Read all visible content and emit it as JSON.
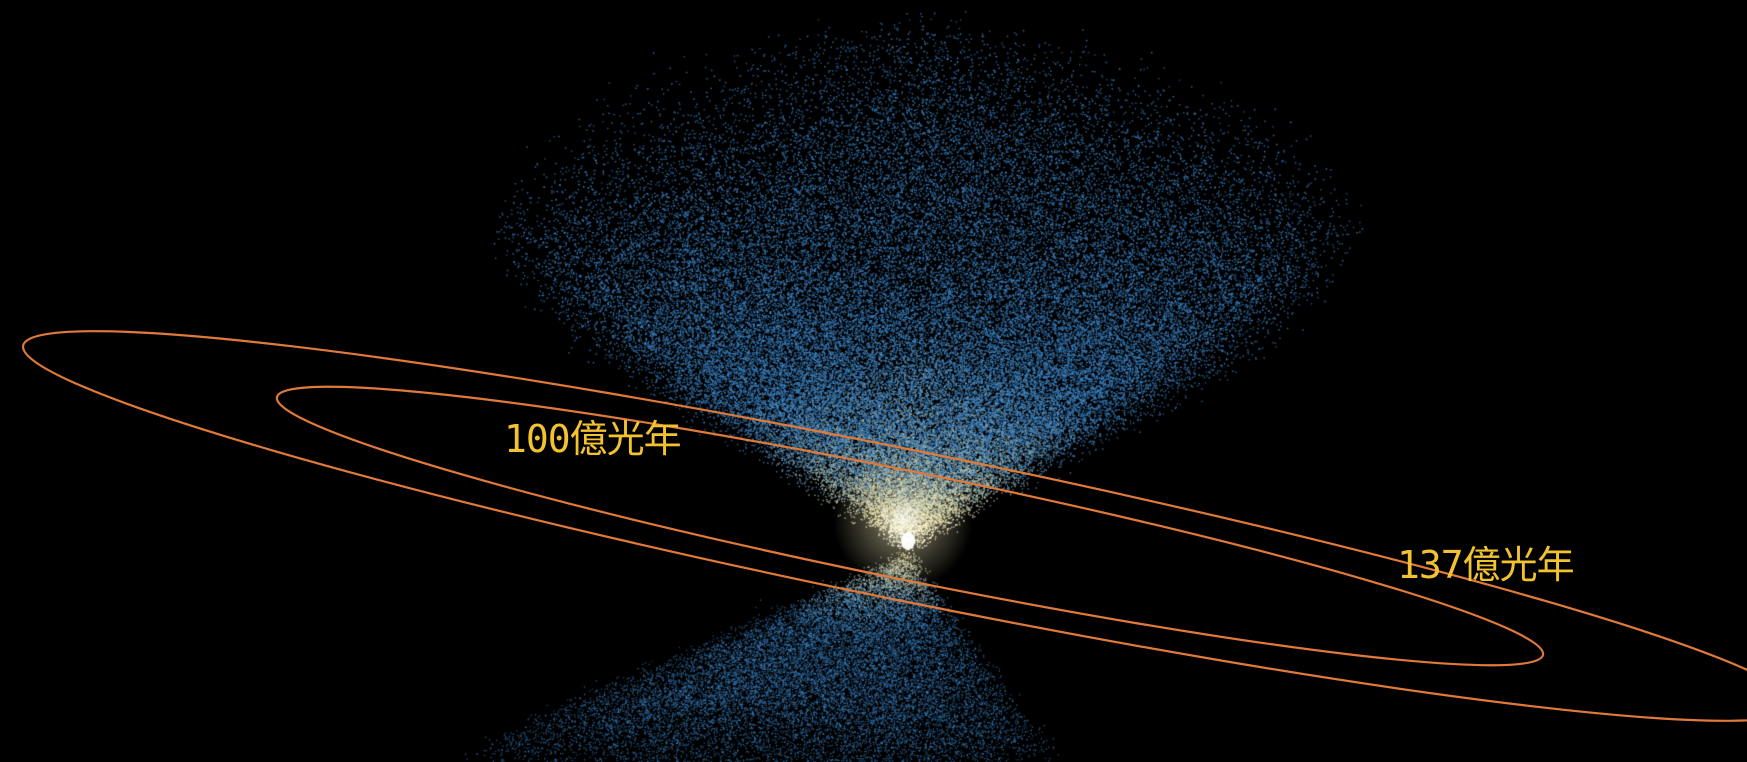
{
  "scene": {
    "background_color": "#000000"
  },
  "galaxy_distribution": {
    "far_color": "#3d86c9",
    "near_color": "#f3e6a8",
    "core_color": "#ffffff"
  },
  "distance_rings": {
    "ring_color": "#e07a3a",
    "label_color": "#f2c230",
    "inner_label": "100億光年",
    "outer_label": "137億光年"
  }
}
